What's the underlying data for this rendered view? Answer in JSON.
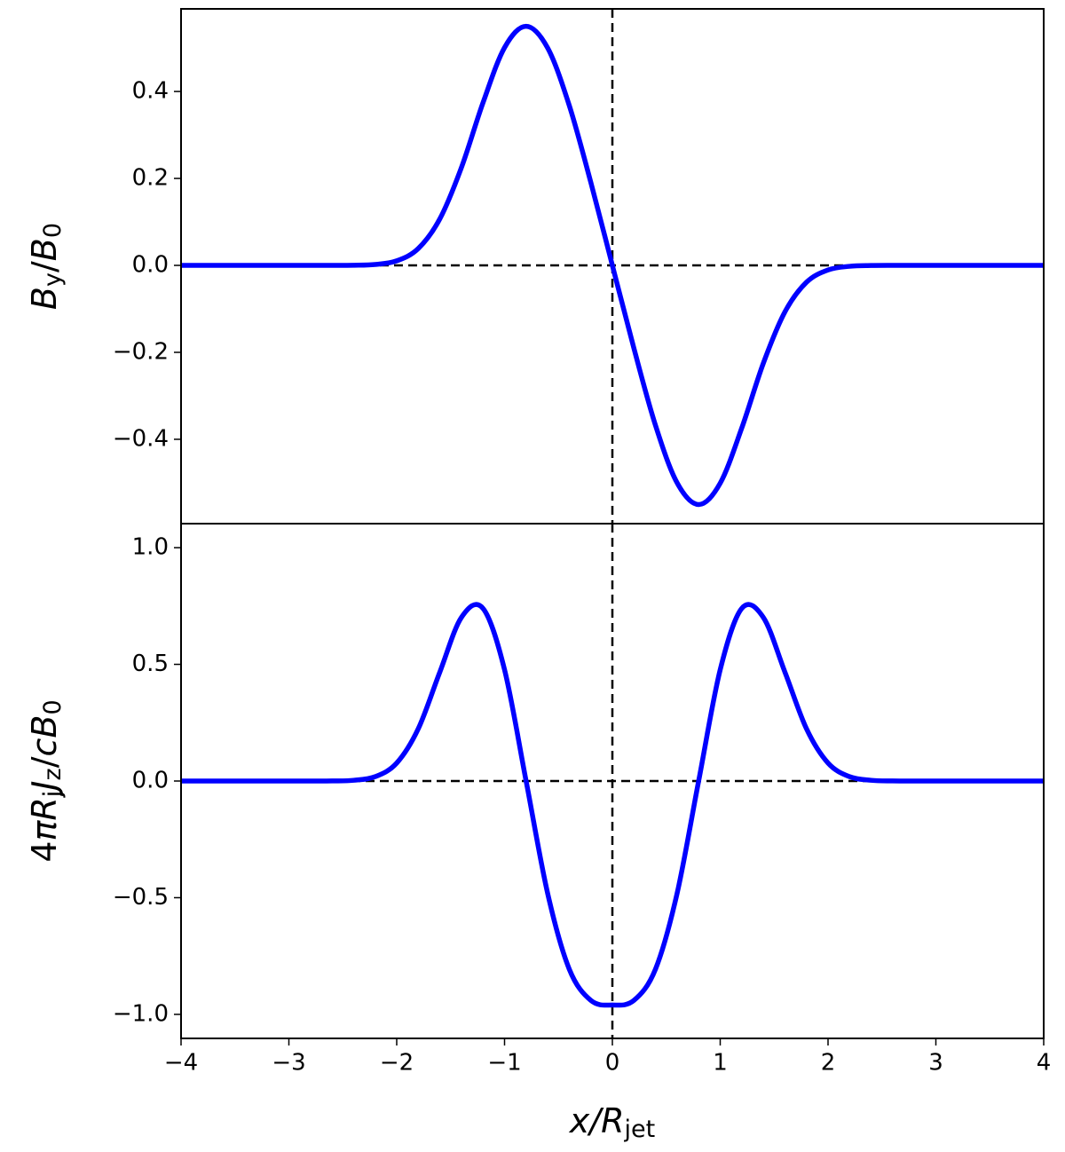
{
  "chart_data": [
    {
      "type": "line",
      "ylabel": [
        {
          "text": "B",
          "italic": true
        },
        {
          "text": "y",
          "sub": true
        },
        {
          "text": "/"
        },
        {
          "text": "B",
          "italic": true
        },
        {
          "text": "0",
          "sub": true
        }
      ],
      "x": [
        -4,
        -3.8,
        -3.6,
        -3.4,
        -3.2,
        -3,
        -2.8,
        -2.6,
        -2.4,
        -2.2,
        -2,
        -1.8,
        -1.6,
        -1.4,
        -1.2,
        -1,
        -0.8,
        -0.6,
        -0.4,
        -0.2,
        0,
        0.2,
        0.4,
        0.6,
        0.8,
        1,
        1.2,
        1.4,
        1.6,
        1.8,
        2,
        2.2,
        2.4,
        2.6,
        2.8,
        3,
        3.2,
        3.4,
        3.6,
        3.8,
        4
      ],
      "values": [
        0,
        0,
        0,
        0,
        0,
        0,
        0,
        0,
        0.0003,
        0.0021,
        0.0105,
        0.0388,
        0.107,
        0.225,
        0.374,
        0.501,
        0.55,
        0.5,
        0.368,
        0.191,
        0,
        -0.191,
        -0.368,
        -0.5,
        -0.55,
        -0.501,
        -0.374,
        -0.225,
        -0.107,
        -0.0388,
        -0.0105,
        -0.0021,
        -0.0003,
        0,
        0,
        0,
        0,
        0,
        0,
        0,
        0
      ],
      "color": "#0000ff",
      "xlim": [
        -4,
        4
      ],
      "ylim": [
        -0.594,
        0.59
      ],
      "yticks": [
        {
          "value": -0.4,
          "label": "−0.4"
        },
        {
          "value": -0.2,
          "label": "−0.2"
        },
        {
          "value": 0,
          "label": "0.0"
        },
        0.2,
        0.4
      ],
      "hline": 0,
      "vline": 0
    },
    {
      "type": "line",
      "ylabel": [
        {
          "text": "4"
        },
        {
          "text": "πR",
          "italic": true
        },
        {
          "text": "j",
          "sub": true
        },
        {
          "text": "J",
          "italic": true
        },
        {
          "text": "z",
          "sub": true
        },
        {
          "text": "/"
        },
        {
          "text": "cB",
          "italic": true
        },
        {
          "text": "0",
          "sub": true
        }
      ],
      "xlabel": [
        {
          "text": "x/R",
          "italic": true
        },
        {
          "text": "jet",
          "sub": true
        }
      ],
      "x": [
        -4,
        -3.8,
        -3.6,
        -3.4,
        -3.2,
        -3,
        -2.8,
        -2.6,
        -2.4,
        -2.2,
        -2,
        -1.8,
        -1.6,
        -1.4,
        -1.2,
        -1,
        -0.8,
        -0.6,
        -0.4,
        -0.2,
        0,
        0.2,
        0.4,
        0.6,
        0.8,
        1,
        1.2,
        1.4,
        1.6,
        1.8,
        2,
        2.2,
        2.4,
        2.6,
        2.8,
        3,
        3.2,
        3.4,
        3.6,
        3.8,
        4
      ],
      "values": [
        0,
        0,
        0,
        0,
        0,
        0,
        0,
        0.0003,
        0.0031,
        0.0186,
        0.077,
        0.224,
        0.467,
        0.701,
        0.74,
        0.477,
        0,
        -0.482,
        -0.806,
        -0.94,
        -0.96,
        -0.94,
        -0.806,
        -0.482,
        0,
        0.477,
        0.74,
        0.701,
        0.467,
        0.224,
        0.077,
        0.0186,
        0.0031,
        0.0003,
        0,
        0,
        0,
        0,
        0,
        0,
        0
      ],
      "color": "#0000ff",
      "xlim": [
        -4,
        4
      ],
      "xticks": [
        {
          "value": -4,
          "label": "−4"
        },
        {
          "value": -3,
          "label": "−3"
        },
        {
          "value": -2,
          "label": "−2"
        },
        {
          "value": -1,
          "label": "−1"
        },
        0,
        1,
        2,
        3,
        4
      ],
      "ylim": [
        -1.103,
        1.103
      ],
      "yticks": [
        {
          "value": -1,
          "label": "−1.0"
        },
        {
          "value": -0.5,
          "label": "−0.5"
        },
        {
          "value": 0,
          "label": "0.0"
        },
        0.5,
        {
          "value": 1,
          "label": "1.0"
        }
      ],
      "hline": 0,
      "vline": 0
    }
  ]
}
